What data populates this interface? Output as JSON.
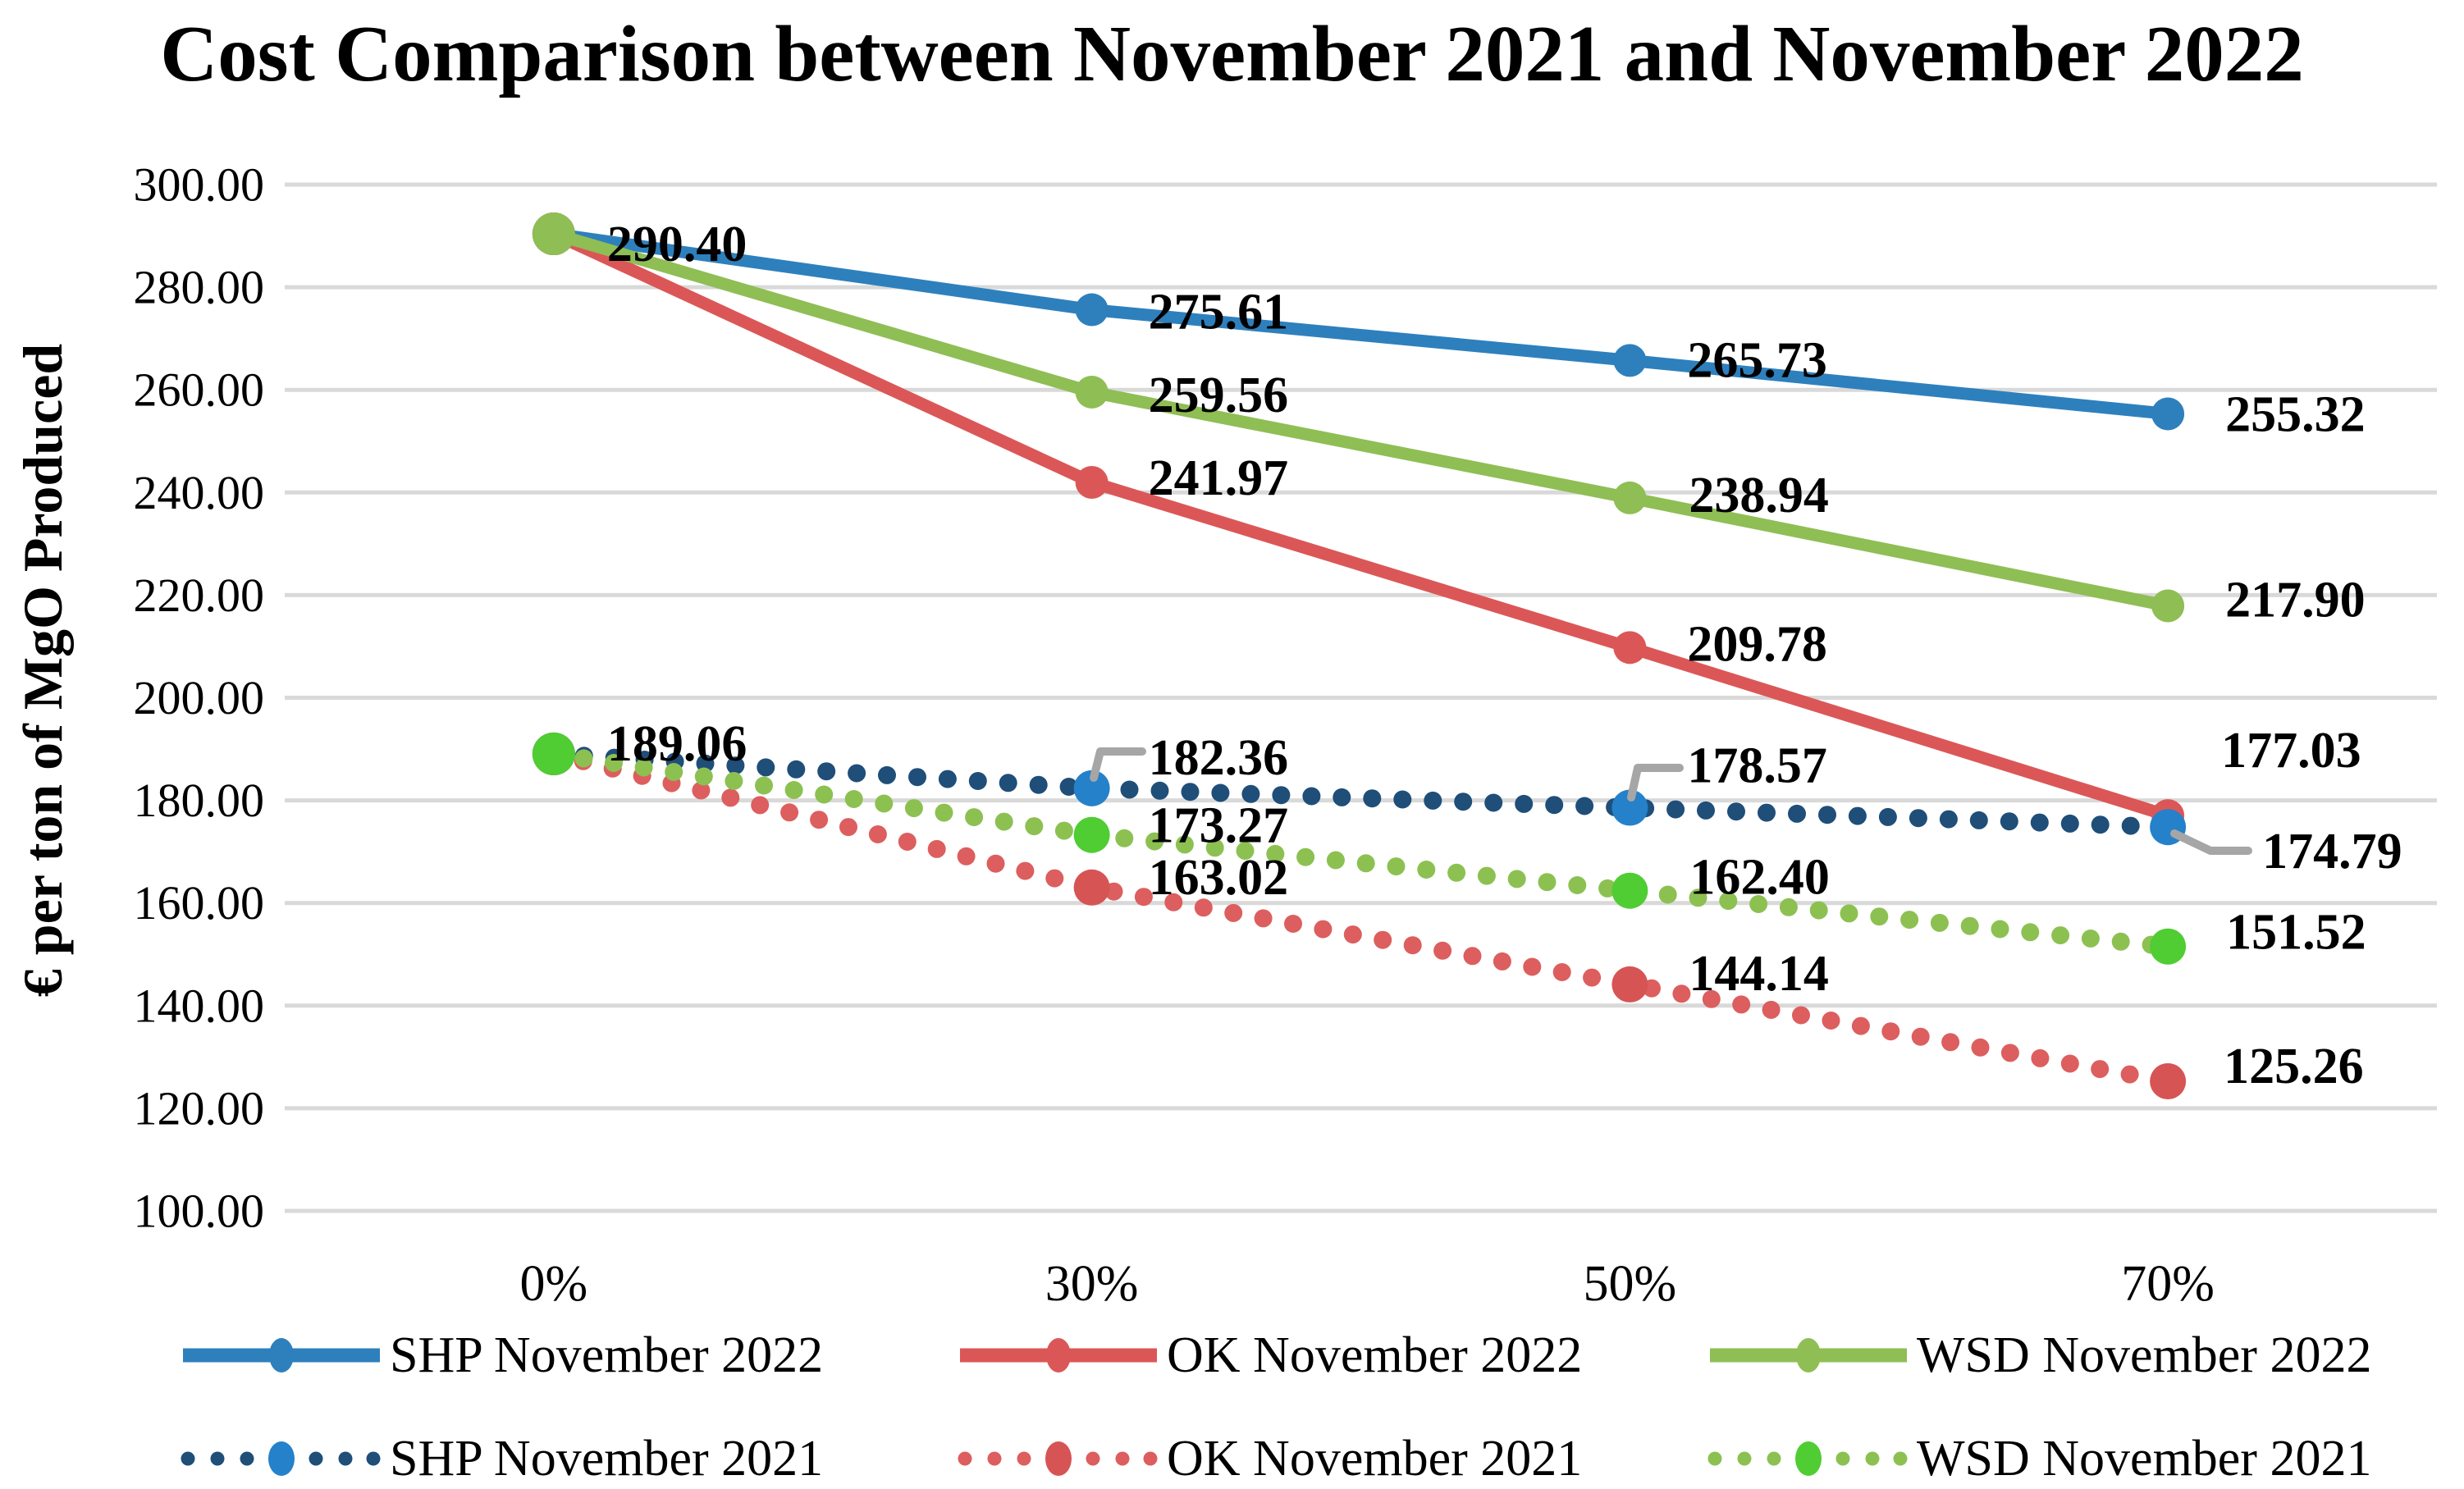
{
  "chart_data": {
    "type": "line",
    "title": "Cost Comparison between November 2021 and November 2022",
    "y_axis_title": "€ per ton of MgO Produced",
    "xlabel": "",
    "categories": [
      "0%",
      "30%",
      "50%",
      "70%"
    ],
    "y_axis": {
      "min": 100,
      "max": 300,
      "step": 20,
      "tick_labels": [
        "300.00",
        "280.00",
        "260.00",
        "240.00",
        "220.00",
        "200.00",
        "180.00",
        "160.00",
        "140.00",
        "120.00",
        "100.00"
      ]
    },
    "grid": "horizontal",
    "grid_color": "#D9D9D9",
    "callout_color": "#A6A6A6",
    "background_color": "#FFFFFF",
    "legend_position": "bottom",
    "series": [
      {
        "name": "SHP November 2022",
        "style": "solid",
        "line_color": "#2E80BD",
        "marker_color": "#2E80BD",
        "values": [
          290.4,
          275.61,
          265.73,
          255.32
        ],
        "data_labels": [
          {
            "at": 0,
            "text": "290.40"
          },
          {
            "at": 1,
            "text": "275.61"
          },
          {
            "at": 2,
            "text": "265.73"
          },
          {
            "at": 3,
            "text": "255.32"
          }
        ]
      },
      {
        "name": "OK November 2022",
        "style": "solid",
        "line_color": "#DB5757",
        "marker_color": "#DB5757",
        "values": [
          290.4,
          241.97,
          209.78,
          177.03
        ],
        "data_labels": [
          {
            "at": 1,
            "text": "241.97"
          },
          {
            "at": 2,
            "text": "209.78"
          },
          {
            "at": 3,
            "text": "177.03"
          }
        ]
      },
      {
        "name": "WSD November 2022",
        "style": "solid",
        "line_color": "#8FBE55",
        "marker_color": "#8FBE55",
        "values": [
          290.4,
          259.56,
          238.94,
          217.9
        ],
        "data_labels": [
          {
            "at": 1,
            "text": "259.56"
          },
          {
            "at": 2,
            "text": "238.94"
          },
          {
            "at": 3,
            "text": "217.90"
          }
        ]
      },
      {
        "name": "SHP November 2021",
        "style": "dotted",
        "line_color": "#1F4E79",
        "marker_color": "#2581C9",
        "values": [
          189.06,
          182.36,
          178.57,
          174.79
        ],
        "data_labels": [
          {
            "at": 0,
            "text": "189.06"
          },
          {
            "at": 1,
            "text": "182.36",
            "callout": true
          },
          {
            "at": 2,
            "text": "178.57",
            "callout": true
          },
          {
            "at": 3,
            "text": "174.79",
            "callout": true
          }
        ]
      },
      {
        "name": "OK November 2021",
        "style": "dotted",
        "line_color": "#DD5E5E",
        "marker_color": "#D75454",
        "values": [
          189.06,
          163.02,
          144.14,
          125.26
        ],
        "data_labels": [
          {
            "at": 1,
            "text": "163.02"
          },
          {
            "at": 2,
            "text": "144.14"
          },
          {
            "at": 3,
            "text": "125.26"
          }
        ]
      },
      {
        "name": "WSD November 2021",
        "style": "dotted",
        "line_color": "#8CC152",
        "marker_color": "#4FCD33",
        "values": [
          189.06,
          173.27,
          162.4,
          151.52
        ],
        "data_labels": [
          {
            "at": 1,
            "text": "173.27"
          },
          {
            "at": 2,
            "text": "162.40"
          },
          {
            "at": 3,
            "text": "151.52"
          }
        ]
      }
    ]
  }
}
